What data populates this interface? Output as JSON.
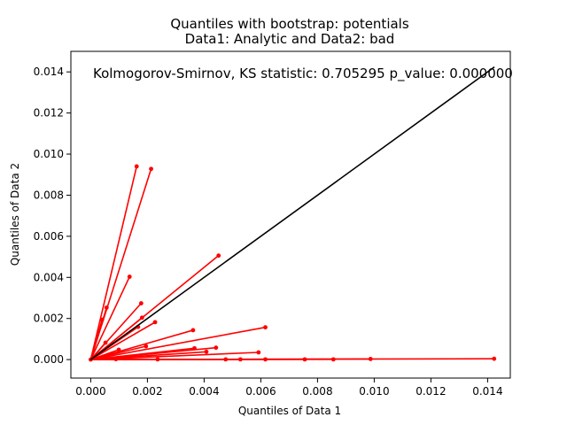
{
  "chart_data": {
    "type": "scatter",
    "title_line1": "Quantiles with bootstrap: potentials",
    "title_line2": "Data1: Analytic and Data2: bad",
    "xlabel": "Quantiles of Data 1",
    "ylabel": "Quantiles of Data 2",
    "annotation": "Kolmogorov-Smirnov, KS statistic: 0.705295 p_value: 0.000000",
    "xlim": [
      -0.0007,
      0.0148
    ],
    "ylim": [
      -0.0009,
      0.015
    ],
    "xticks": [
      0.0,
      0.002,
      0.004,
      0.006,
      0.008,
      0.01,
      0.012,
      0.014
    ],
    "xtick_labels": [
      "0.000",
      "0.002",
      "0.004",
      "0.006",
      "0.008",
      "0.010",
      "0.012",
      "0.014"
    ],
    "yticks": [
      0.0,
      0.002,
      0.004,
      0.006,
      0.008,
      0.01,
      0.012,
      0.014
    ],
    "ytick_labels": [
      "0.000",
      "0.002",
      "0.004",
      "0.006",
      "0.008",
      "0.010",
      "0.012",
      "0.014"
    ],
    "reference_line": {
      "color": "#000000",
      "x": [
        0.0,
        0.01424
      ],
      "y": [
        0.0,
        0.01424
      ]
    },
    "series": [
      {
        "color": "#ff0000",
        "points": [
          [
            0.0,
            0.0
          ],
          [
            0.00162,
            0.0094
          ],
          [
            0.00213,
            0.00928
          ],
          [
            0.00451,
            0.00506
          ],
          [
            0.00137,
            0.00403
          ],
          [
            0.00056,
            0.00253
          ],
          [
            0.0004,
            0.00194
          ],
          [
            0.00178,
            0.00274
          ],
          [
            0.00181,
            0.00204
          ],
          [
            0.00167,
            0.00159
          ],
          [
            0.00227,
            0.00182
          ],
          [
            0.00052,
            0.00082
          ],
          [
            0.00099,
            0.00048
          ],
          [
            0.00195,
            0.00065
          ],
          [
            0.00361,
            0.00143
          ],
          [
            0.00616,
            0.00157
          ],
          [
            0.00366,
            0.00055
          ],
          [
            0.00442,
            0.00058
          ],
          [
            0.00408,
            0.00038
          ],
          [
            0.00592,
            0.00035
          ],
          [
            0.00236,
            1e-05
          ],
          [
            0.00476,
            1e-05
          ],
          [
            0.00528,
            1e-05
          ],
          [
            0.00616,
            1e-05
          ],
          [
            0.00755,
            1e-05
          ],
          [
            0.00856,
            1e-05
          ],
          [
            0.00987,
            3e-05
          ],
          [
            0.01423,
            4e-05
          ],
          [
            0.00089,
            2e-05
          ]
        ]
      }
    ]
  }
}
